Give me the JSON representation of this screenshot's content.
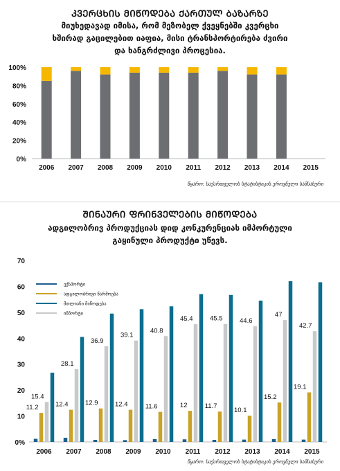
{
  "chart1": {
    "title": "ᲙᲕᲔᲠᲪᲮᲘᲡ ᲛᲘᲬᲝᲓᲔᲑᲐ ᲥᲐᲠᲗᲣᲚ ᲑᲐᲖᲐᲠᲖᲔ",
    "subtitle_lines": [
      "მიუხედავად იმისა, რომ მეზობელ ქვეყნებში კვერცხი",
      "ხშირად გაცილებით იაფია, მისი ტრანსპორტირება ძვირი",
      "და ხანგრძლივი პროცესია."
    ],
    "source": "წყარო: საქართველოს სტატისტიკის ეროვნული სამსახური"
  },
  "chart2": {
    "title": "ᲨᲘᲜᲐᲣᲠᲘ ᲤᲠᲘᲜᲕᲔᲚᲔᲑᲘᲡ ᲛᲘᲬᲝᲓᲔᲑᲐ",
    "subtitle_lines": [
      "ადგილობრივ პროდუქციას დიდ კონკურენციას იმპორტული",
      "გაყინული პროდუქტი უწევს."
    ],
    "source": "წყარო: საქართველოს სტატისტიკის ეროვნული სამსახური"
  },
  "colors": {
    "gray": "#6d6e71",
    "yellow": "#f5b700",
    "gold": "#c9a227",
    "darkblue": "#1e5f8c",
    "teal": "#0a6e8f",
    "lightgray": "#c8c9cb"
  },
  "chart_data": [
    {
      "type": "bar",
      "stacked": true,
      "percent": true,
      "categories": [
        "2006",
        "2007",
        "2008",
        "2009",
        "2010",
        "2011",
        "2012",
        "2013",
        "2014",
        "2015"
      ],
      "series": [
        {
          "color": "gray",
          "values": [
            85,
            96,
            92,
            94,
            94,
            94,
            96,
            92,
            92,
            null
          ]
        },
        {
          "color": "yellow",
          "values": [
            15,
            4,
            8,
            6,
            6,
            6,
            4,
            8,
            8,
            null
          ]
        }
      ],
      "ylim": [
        0,
        100
      ],
      "yticks": [
        "0%",
        "20%",
        "40%",
        "60%",
        "80%",
        "100%"
      ],
      "grid": false,
      "legend": "none"
    },
    {
      "type": "bar",
      "categories": [
        "2006",
        "2007",
        "2008",
        "2009",
        "2010",
        "2011",
        "2012",
        "2013",
        "2014",
        "2015"
      ],
      "series": [
        {
          "name": "ექსპორტი",
          "color": "darkblue",
          "values": [
            1.2,
            1.6,
            0.8,
            0.7,
            1.1,
            1.0,
            0.8,
            0.9,
            1.1,
            0.9
          ]
        },
        {
          "name": "ადგილობრივი წარმოება",
          "color": "gold",
          "values": [
            11.2,
            12.4,
            12.9,
            12.4,
            11.6,
            12,
            11.7,
            10.1,
            15.2,
            19.1
          ]
        },
        {
          "name": "იმპორტი",
          "color": "lightgray",
          "values": [
            15.4,
            28.1,
            36.9,
            39.1,
            40.8,
            45.4,
            45.5,
            44.6,
            47,
            42.7
          ]
        },
        {
          "name": "მთლიანი მიწოდება",
          "color": "teal",
          "values": [
            26.7,
            40.5,
            49.5,
            51.2,
            52.3,
            57.0,
            56.7,
            54.5,
            62,
            61.6
          ]
        }
      ],
      "labels": [
        {
          "series": "ადგილობრივი წარმოება",
          "texts": [
            "11.2",
            "12.4",
            "12.9",
            "12.4",
            "11.6",
            "12",
            "11.7",
            "10.1",
            "15.2",
            "19.1"
          ]
        },
        {
          "series": "იმპორტი",
          "texts": [
            "15.4",
            "28.1",
            "36.9",
            "39.1",
            "40.8",
            "45.4",
            "45.5",
            "44.6",
            "47",
            "42.7"
          ]
        }
      ],
      "ylim": [
        0,
        70
      ],
      "yticks": [
        "0%",
        "10",
        "20",
        "30",
        "40",
        "50",
        "60",
        "70"
      ],
      "grid": false,
      "legend": "top-left"
    }
  ]
}
